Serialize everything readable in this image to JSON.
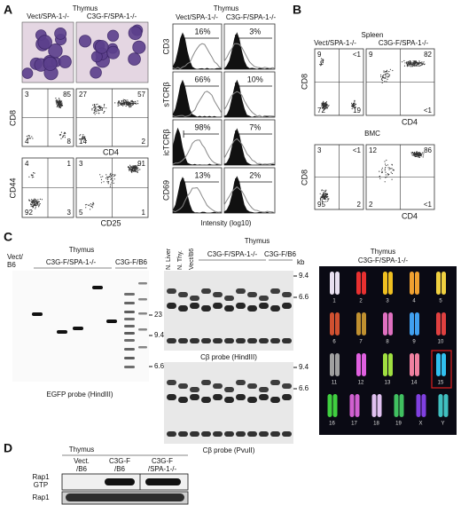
{
  "panel_labels": [
    "A",
    "B",
    "C",
    "D"
  ],
  "panel_a": {
    "title": "Thymus",
    "groups": [
      "Vect/SPA-1-/-",
      "C3G-F/SPA-1-/-"
    ],
    "cd4_cd8": {
      "y_label": "CD8",
      "x_label": "CD4",
      "quadrants": [
        {
          "tl": "3",
          "tr": "85",
          "bl": "4",
          "br": "8"
        },
        {
          "tl": "27",
          "tr": "57",
          "bl": "14",
          "br": "2"
        }
      ]
    },
    "cd25_cd44": {
      "y_label": "CD44",
      "x_label": "CD25",
      "quadrants": [
        {
          "tl": "4",
          "tr": "1",
          "bl": "92",
          "br": "3"
        },
        {
          "tl": "3",
          "tr": "91",
          "bl": "5",
          "br": "1"
        }
      ]
    },
    "histograms": {
      "title": "Thymus",
      "groups": [
        "Vect/SPA-1-/-",
        "C3G-F/SPA-1-/-"
      ],
      "rows": [
        {
          "marker": "CD3",
          "percents": [
            "16%",
            "3%"
          ]
        },
        {
          "marker": "sTCRβ",
          "percents": [
            "66%",
            "10%"
          ]
        },
        {
          "marker": "icTCRβ",
          "percents": [
            "98%",
            "7%"
          ]
        },
        {
          "marker": "CD69",
          "percents": [
            "13%",
            "2%"
          ]
        }
      ],
      "x_label": "Intensity (log10)"
    }
  },
  "panel_b": {
    "spleen": {
      "title": "Spleen",
      "groups": [
        "Vect/SPA-1-/-",
        "C3G-F/SPA-1-/-"
      ],
      "y_label": "CD8",
      "x_label": "CD4",
      "quadrants": [
        {
          "tl": "9",
          "tr": "<1",
          "bl": "72",
          "br": "19"
        },
        {
          "tl": "9",
          "tr": "82",
          "br": "<1"
        }
      ]
    },
    "bmc": {
      "title": "BMC",
      "y_label": "CD8",
      "x_label": "CD4",
      "quadrants": [
        {
          "tl": "3",
          "tr": "<1",
          "bl": "95",
          "br": "2"
        },
        {
          "tl": "12",
          "tr": "86",
          "bl": "2",
          "br": "<1"
        }
      ]
    }
  },
  "panel_c": {
    "egfp": {
      "title": "Thymus",
      "control_lane": [
        "Vect/",
        "B6"
      ],
      "groups": [
        "C3G-F/SPA-1-/-",
        "C3G-F/B6"
      ],
      "kb_markers": [
        "23",
        "9.4",
        "6.6"
      ],
      "caption": "EGFP probe (HindIII)"
    },
    "cbeta": {
      "control_lanes": [
        "N. Liver",
        "N. Thy.",
        "Vect/B6"
      ],
      "title": "Thymus",
      "groups": [
        "C3G-F/SPA-1-/-",
        "C3G-F/B6"
      ],
      "kb_unit": "kb",
      "hindiii": {
        "kb_markers": [
          "9.4",
          "6.6"
        ],
        "caption": "Cβ probe (HindIII)"
      },
      "pvuii": {
        "kb_markers": [
          "9.4",
          "6.6"
        ],
        "caption": "Cβ probe (PvuII)"
      }
    },
    "karyotype": {
      "title": "Thymus",
      "group": "C3G-F/SPA-1-/-",
      "chromosomes": [
        "1",
        "2",
        "3",
        "4",
        "5",
        "6",
        "7",
        "8",
        "9",
        "10",
        "11",
        "12",
        "13",
        "14",
        "15",
        "16",
        "17",
        "18",
        "19",
        "X",
        "Y"
      ]
    }
  },
  "panel_d": {
    "title": "Thymus",
    "lanes": [
      [
        "Vect.",
        "/B6"
      ],
      [
        "C3G-F",
        "/B6"
      ],
      [
        "C3G-F",
        "/SPA-1-/-"
      ]
    ],
    "rows": [
      [
        "Rap1",
        "GTP"
      ],
      [
        "Rap1"
      ]
    ]
  }
}
